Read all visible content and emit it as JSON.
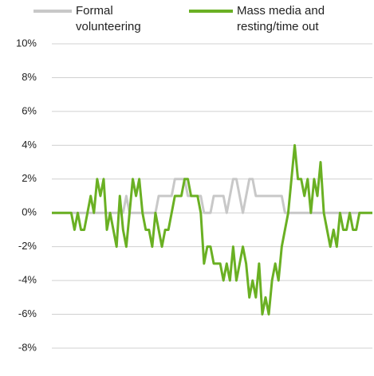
{
  "chart_data": {
    "type": "line",
    "categories": [
      null,
      null,
      null,
      null,
      null,
      null,
      null,
      null,
      null,
      null,
      null,
      null,
      null,
      null,
      null,
      null,
      null,
      null,
      null,
      null,
      null,
      null,
      null,
      null,
      null,
      null,
      null,
      null,
      null,
      null,
      null,
      null,
      null,
      null,
      null,
      null,
      null,
      null,
      null,
      null,
      null,
      null,
      null,
      null,
      null,
      null,
      null,
      null,
      null,
      null,
      null,
      null,
      null,
      null,
      null,
      null,
      null,
      null,
      null,
      null,
      null,
      null,
      null,
      null,
      null,
      null,
      null,
      null,
      null,
      null,
      null,
      null,
      null,
      null,
      null,
      null,
      null,
      null,
      null,
      null,
      null,
      null,
      null,
      null,
      null,
      null,
      null,
      null,
      null,
      null,
      null,
      null,
      null,
      null,
      null,
      null,
      null,
      null,
      null,
      null
    ],
    "series": [
      {
        "name": "Formal volunteering",
        "color": "#c8c8c8",
        "values": [
          0,
          0,
          0,
          0,
          0,
          0,
          0,
          0,
          0,
          0,
          0,
          0,
          0,
          0,
          0,
          0,
          0,
          0,
          0,
          0,
          0,
          0,
          0,
          1,
          0,
          0,
          0,
          0,
          0,
          0,
          0,
          0,
          0,
          1,
          1,
          1,
          1,
          1,
          2,
          2,
          2,
          2,
          1,
          1,
          1,
          1,
          1,
          0,
          0,
          0,
          1,
          1,
          1,
          1,
          0,
          1,
          2,
          2,
          1,
          0,
          1,
          2,
          2,
          1,
          1,
          1,
          1,
          1,
          1,
          1,
          1,
          1,
          0,
          0,
          0,
          0,
          0,
          0,
          0,
          0,
          0,
          0,
          0,
          0,
          0,
          0,
          0,
          0,
          0,
          0,
          0,
          0,
          0,
          0,
          0,
          0,
          0,
          0,
          0,
          0
        ]
      },
      {
        "name": "Mass media and resting/time out",
        "color": "#6ab023",
        "values": [
          0,
          0,
          0,
          0,
          0,
          0,
          0,
          -1,
          0,
          -1,
          -1,
          0,
          1,
          0,
          2,
          1,
          2,
          -1,
          0,
          -1,
          -2,
          1,
          -1,
          -2,
          0,
          2,
          1,
          2,
          0,
          -1,
          -1,
          -2,
          0,
          -1,
          -2,
          -1,
          -1,
          0,
          1,
          1,
          1,
          2,
          2,
          1,
          1,
          1,
          0,
          -3,
          -2,
          -2,
          -3,
          -3,
          -3,
          -4,
          -3,
          -4,
          -2,
          -4,
          -3,
          -2,
          -3,
          -5,
          -4,
          -5,
          -3,
          -6,
          -5,
          -6,
          -4,
          -3,
          -4,
          -2,
          -1,
          0,
          2,
          4,
          2,
          2,
          1,
          2,
          0,
          2,
          1,
          3,
          0,
          -1,
          -2,
          -1,
          -2,
          0,
          -1,
          -1,
          0,
          -1,
          -1,
          0,
          0,
          0,
          0,
          0
        ]
      }
    ],
    "ylim": [
      -8,
      10
    ],
    "yticks": [
      {
        "value": -8,
        "label": "-8%"
      },
      {
        "value": -6,
        "label": "-6%"
      },
      {
        "value": -4,
        "label": "-4%"
      },
      {
        "value": -2,
        "label": "-2%"
      },
      {
        "value": 0,
        "label": "0%"
      },
      {
        "value": 2,
        "label": "2%"
      },
      {
        "value": 4,
        "label": "4%"
      },
      {
        "value": 6,
        "label": "6%"
      },
      {
        "value": 8,
        "label": "8%"
      },
      {
        "value": 10,
        "label": "10%"
      }
    ],
    "grid": true
  }
}
